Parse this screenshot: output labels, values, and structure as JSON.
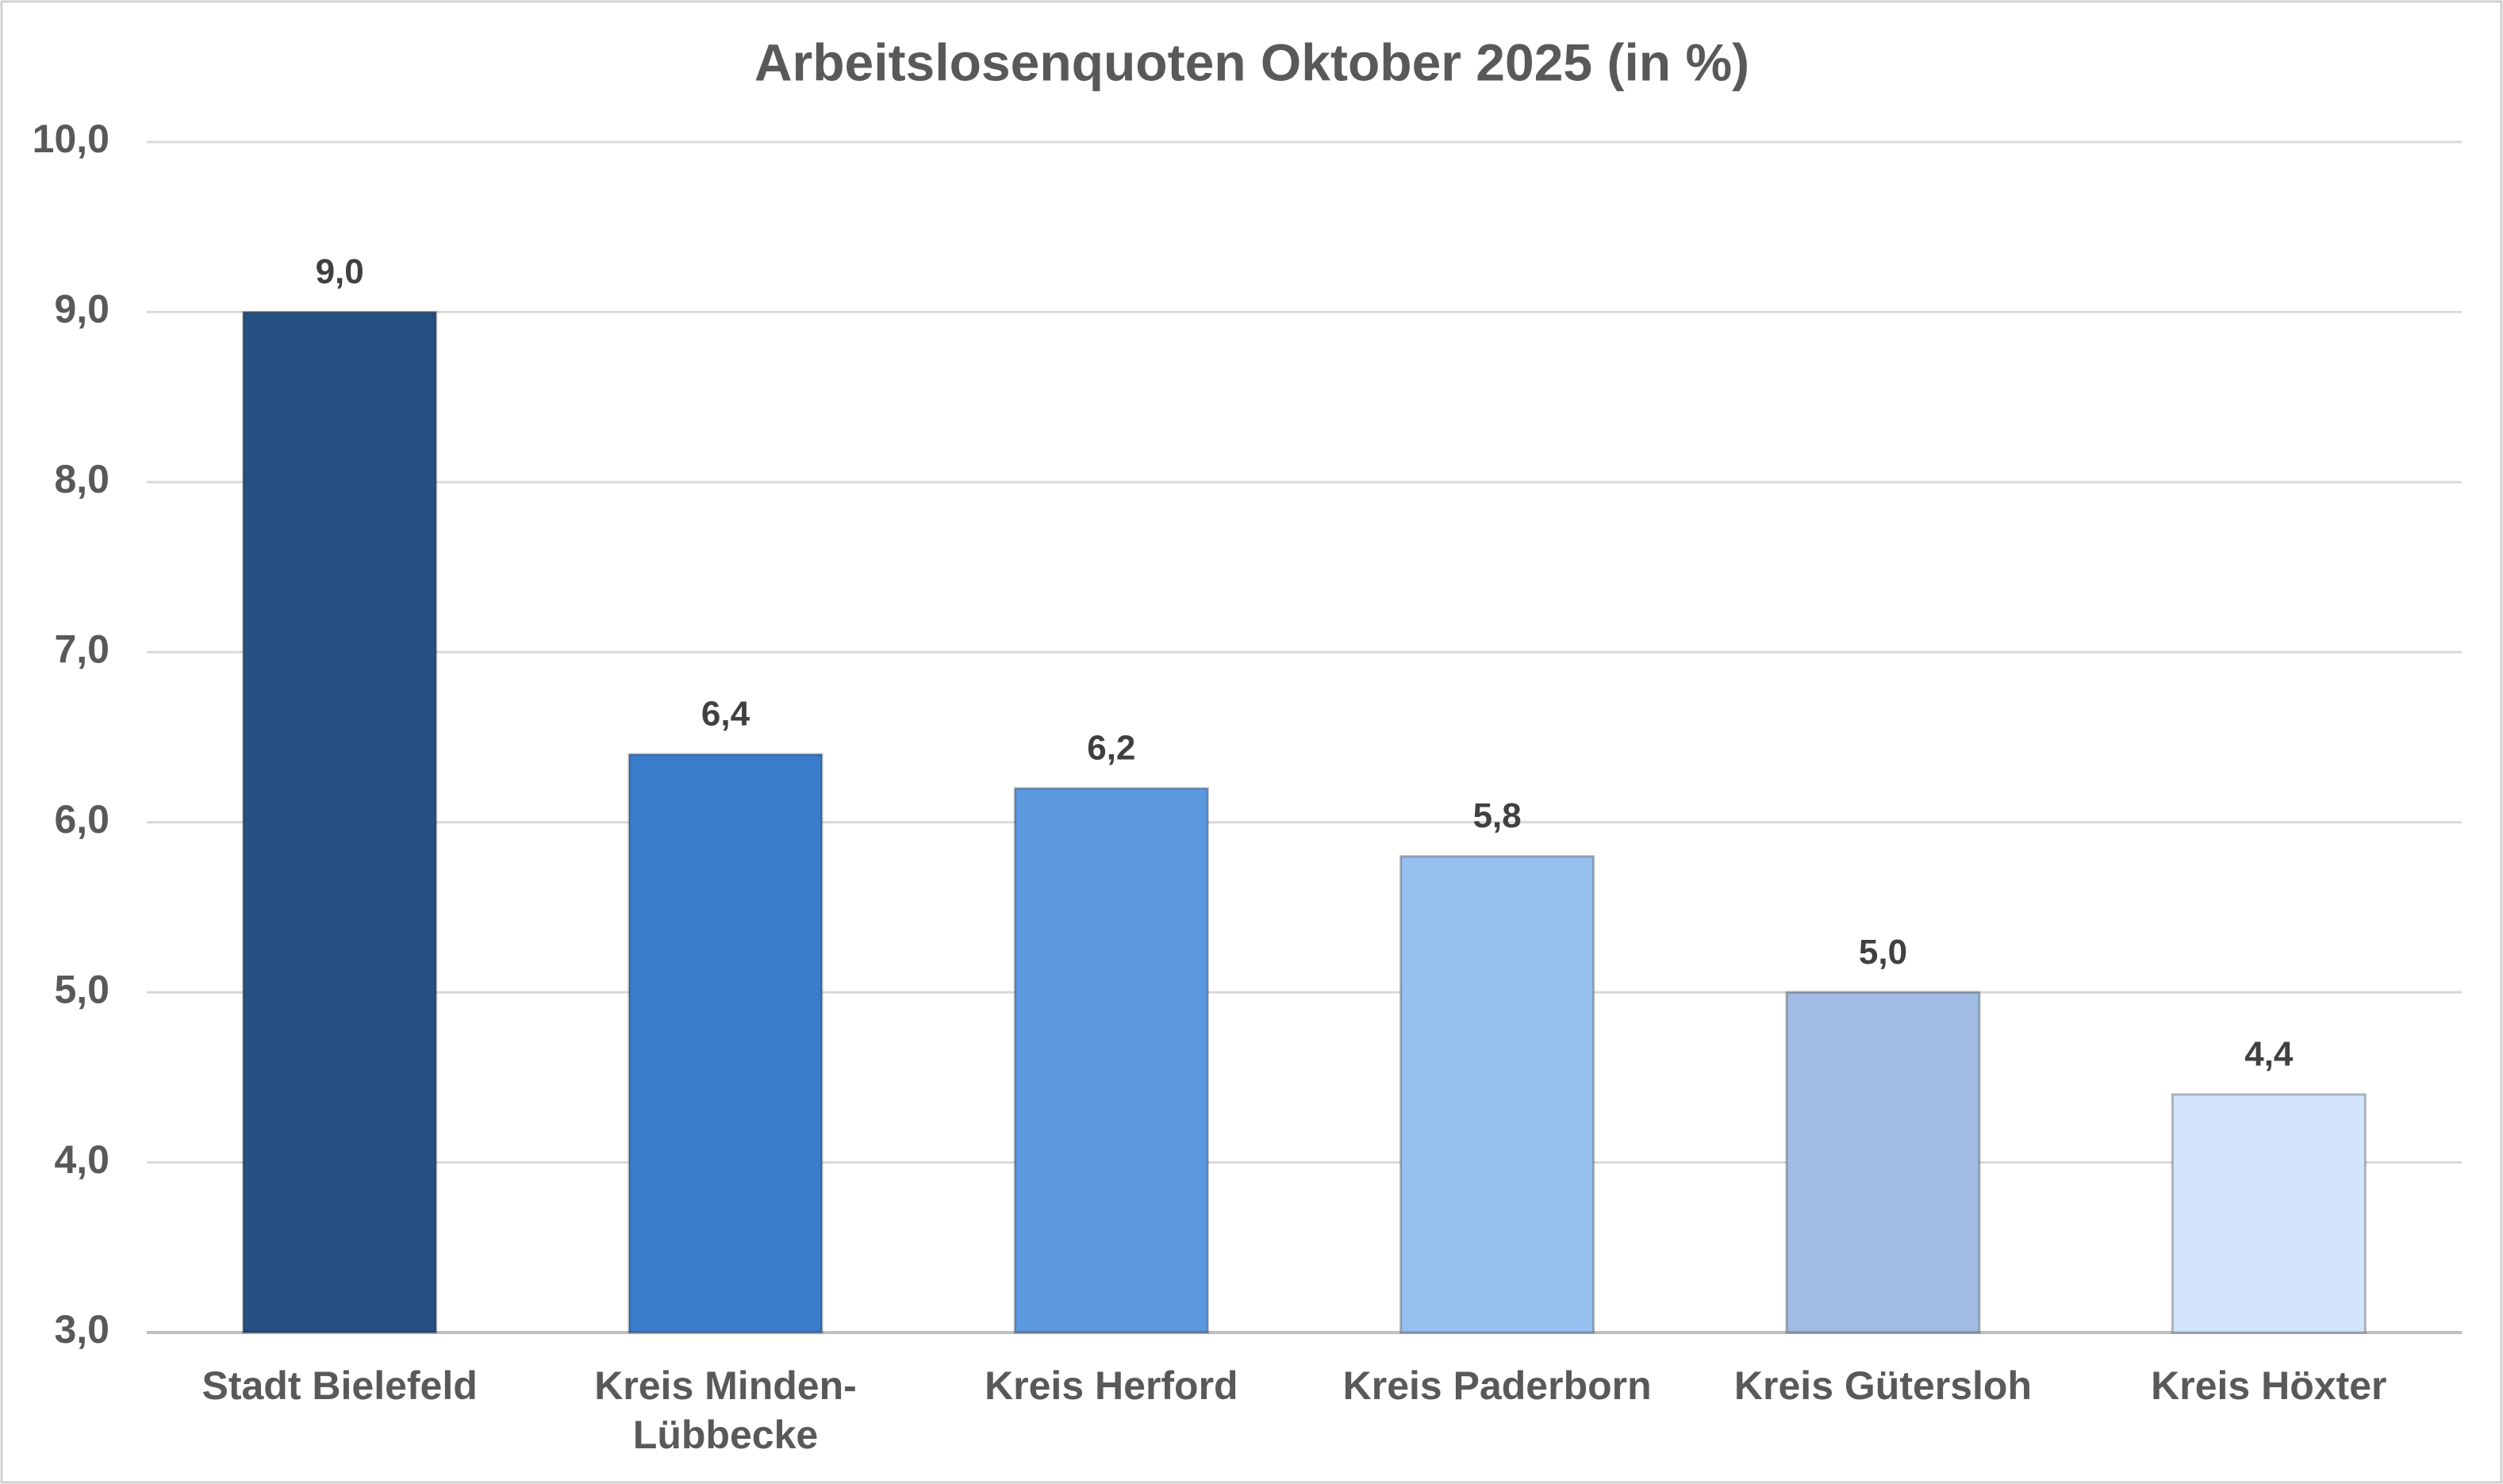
{
  "chart_data": {
    "type": "bar",
    "title": "Arbeitslosenquoten Oktober 2025 (in %)",
    "categories": [
      "Stadt Bielefeld",
      "Kreis Minden-Lübbecke",
      "Kreis Herford",
      "Kreis Paderborn",
      "Kreis Gütersloh",
      "Kreis Höxter"
    ],
    "values": [
      9.0,
      6.4,
      6.2,
      5.8,
      5.0,
      4.4
    ],
    "value_labels": [
      "9,0",
      "6,4",
      "6,2",
      "5,8",
      "5,0",
      "4,4"
    ],
    "colors": [
      "#264f82",
      "#3b7bcb",
      "#5b98de",
      "#97bff0",
      "#a0bce2",
      "#d3e5fb"
    ],
    "ylim": [
      3,
      10
    ],
    "yticks": [
      {
        "value": 3,
        "label": "3,0"
      },
      {
        "value": 4,
        "label": "4,0"
      },
      {
        "value": 5,
        "label": "5,0"
      },
      {
        "value": 6,
        "label": "6,0"
      },
      {
        "value": 7,
        "label": "7,0"
      },
      {
        "value": 8,
        "label": "8,0"
      },
      {
        "value": 9,
        "label": "9,0"
      },
      {
        "value": 10,
        "label": "10,0"
      }
    ],
    "grid": true
  }
}
